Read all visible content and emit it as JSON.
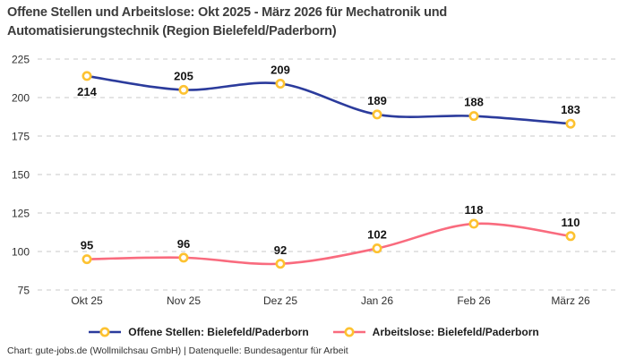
{
  "title": "Offene Stellen und Arbeitslose: Okt 2025 - März 2026 für Mechatronik und Automatisierungstechnik (Region Bielefeld/Paderborn)",
  "footer": "Chart: gute-jobs.de (Wollmilchsau GmbH) | Datenquelle: Bundesagentur für Arbeit",
  "colors": {
    "background": "#ffffff",
    "grid": "#c9c9c9",
    "tick_text": "#2f2f2f",
    "data_label": "#141414",
    "title_text": "#3c3c3c",
    "series_blue": "#2b3b9c",
    "series_pink": "#f96b7e",
    "marker_ring": "#fdc231"
  },
  "chart_data": {
    "type": "line",
    "title": "Offene Stellen und Arbeitslose: Okt 2025 - März 2026 für Mechatronik und Automatisierungstechnik (Region Bielefeld/Paderborn)",
    "categories": [
      "Okt 25",
      "Nov 25",
      "Dez 25",
      "Jan 26",
      "Feb 26",
      "März 26"
    ],
    "series": [
      {
        "name": "Offene Stellen: Bielefeld/Paderborn",
        "values": [
          214,
          205,
          209,
          189,
          188,
          183
        ],
        "color": "#2b3b9c",
        "label_below_indices": [
          0
        ]
      },
      {
        "name": "Arbeitslose: Bielefeld/Paderborn",
        "values": [
          95,
          96,
          92,
          102,
          118,
          110
        ],
        "color": "#f96b7e",
        "label_below_indices": []
      }
    ],
    "yticks": [
      225,
      200,
      175,
      150,
      125,
      100,
      75
    ],
    "ylim": [
      75,
      225
    ],
    "xlabel": "",
    "ylabel": "",
    "grid": "horizontal-dashed",
    "smooth": true,
    "show_point_labels": true,
    "legend_position": "bottom",
    "marker": {
      "shape": "circle",
      "stroke": "#fdc231",
      "fill": "#ffffff"
    }
  }
}
